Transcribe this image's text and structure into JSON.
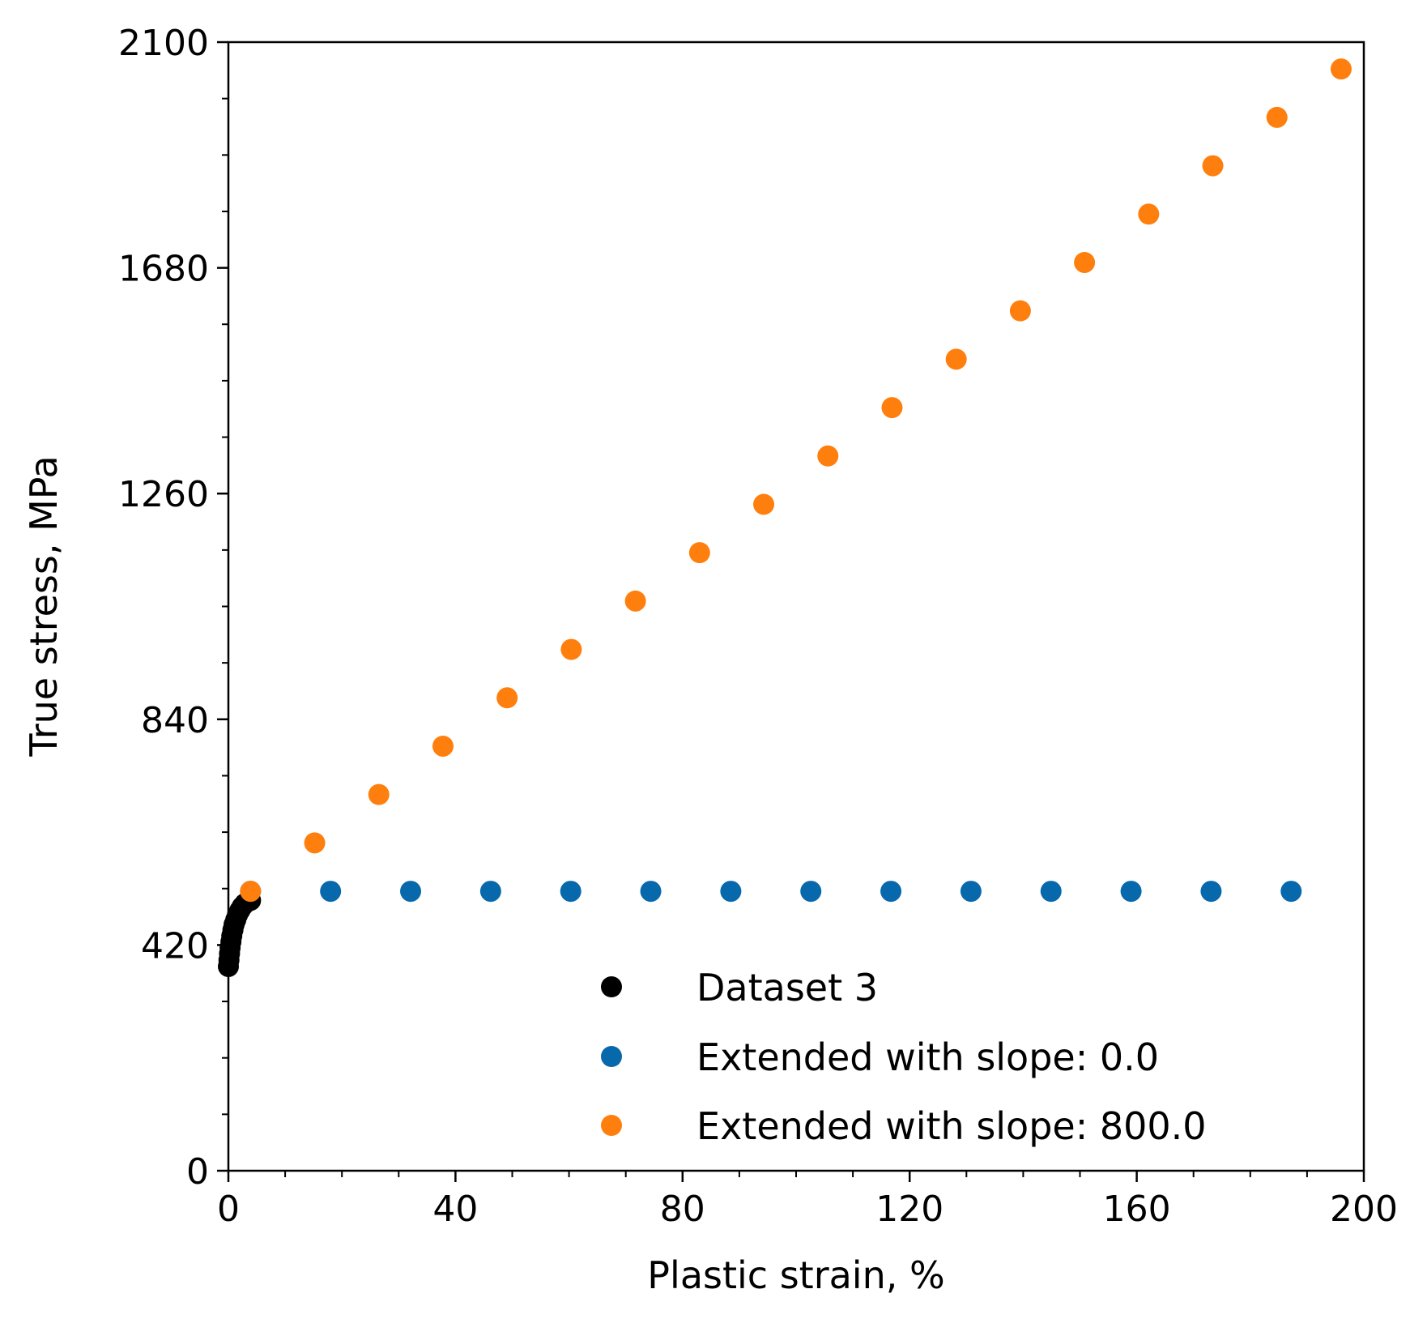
{
  "chart_data": {
    "type": "scatter",
    "xlabel": "Plastic strain, %",
    "ylabel": "True stress, MPa",
    "xlim": [
      0,
      200
    ],
    "ylim": [
      0,
      2100
    ],
    "x_ticks": [
      0,
      40,
      80,
      120,
      160,
      200
    ],
    "y_ticks": [
      0,
      420,
      840,
      1260,
      1680,
      2100
    ],
    "x_minor_step": 10,
    "y_minor_step": 105,
    "grid": false,
    "legend_position": "lower-right",
    "series": [
      {
        "name": "Dataset 3",
        "color": "#000000",
        "points": [
          [
            0.0,
            380
          ],
          [
            0.1,
            392
          ],
          [
            0.2,
            404
          ],
          [
            0.3,
            415
          ],
          [
            0.45,
            426
          ],
          [
            0.6,
            437
          ],
          [
            0.8,
            448
          ],
          [
            1.0,
            458
          ],
          [
            1.3,
            467
          ],
          [
            1.6,
            476
          ],
          [
            2.0,
            484
          ],
          [
            2.4,
            491
          ],
          [
            2.9,
            497
          ],
          [
            3.4,
            501
          ],
          [
            3.9,
            503
          ]
        ]
      },
      {
        "name": "Extended with slope: 0.0",
        "color": "#0868ac",
        "points": [
          [
            3.9,
            520
          ],
          [
            18.0,
            520
          ],
          [
            32.1,
            520
          ],
          [
            46.2,
            520
          ],
          [
            60.3,
            520
          ],
          [
            74.4,
            520
          ],
          [
            88.5,
            520
          ],
          [
            102.6,
            520
          ],
          [
            116.7,
            520
          ],
          [
            130.8,
            520
          ],
          [
            144.9,
            520
          ],
          [
            159.0,
            520
          ],
          [
            173.1,
            520
          ],
          [
            187.2,
            520
          ]
        ]
      },
      {
        "name": "Extended with slope: 800.0",
        "color": "#ff7f0e",
        "points": [
          [
            3.9,
            520
          ],
          [
            15.2,
            610
          ],
          [
            26.5,
            700
          ],
          [
            37.8,
            790
          ],
          [
            49.1,
            880
          ],
          [
            60.4,
            970
          ],
          [
            71.7,
            1060
          ],
          [
            83.0,
            1150
          ],
          [
            94.3,
            1240
          ],
          [
            105.6,
            1330
          ],
          [
            116.9,
            1420
          ],
          [
            128.2,
            1510
          ],
          [
            139.5,
            1600
          ],
          [
            150.8,
            1690
          ],
          [
            162.1,
            1780
          ],
          [
            173.4,
            1870
          ],
          [
            184.7,
            1960
          ],
          [
            196.0,
            2050
          ]
        ]
      }
    ]
  }
}
